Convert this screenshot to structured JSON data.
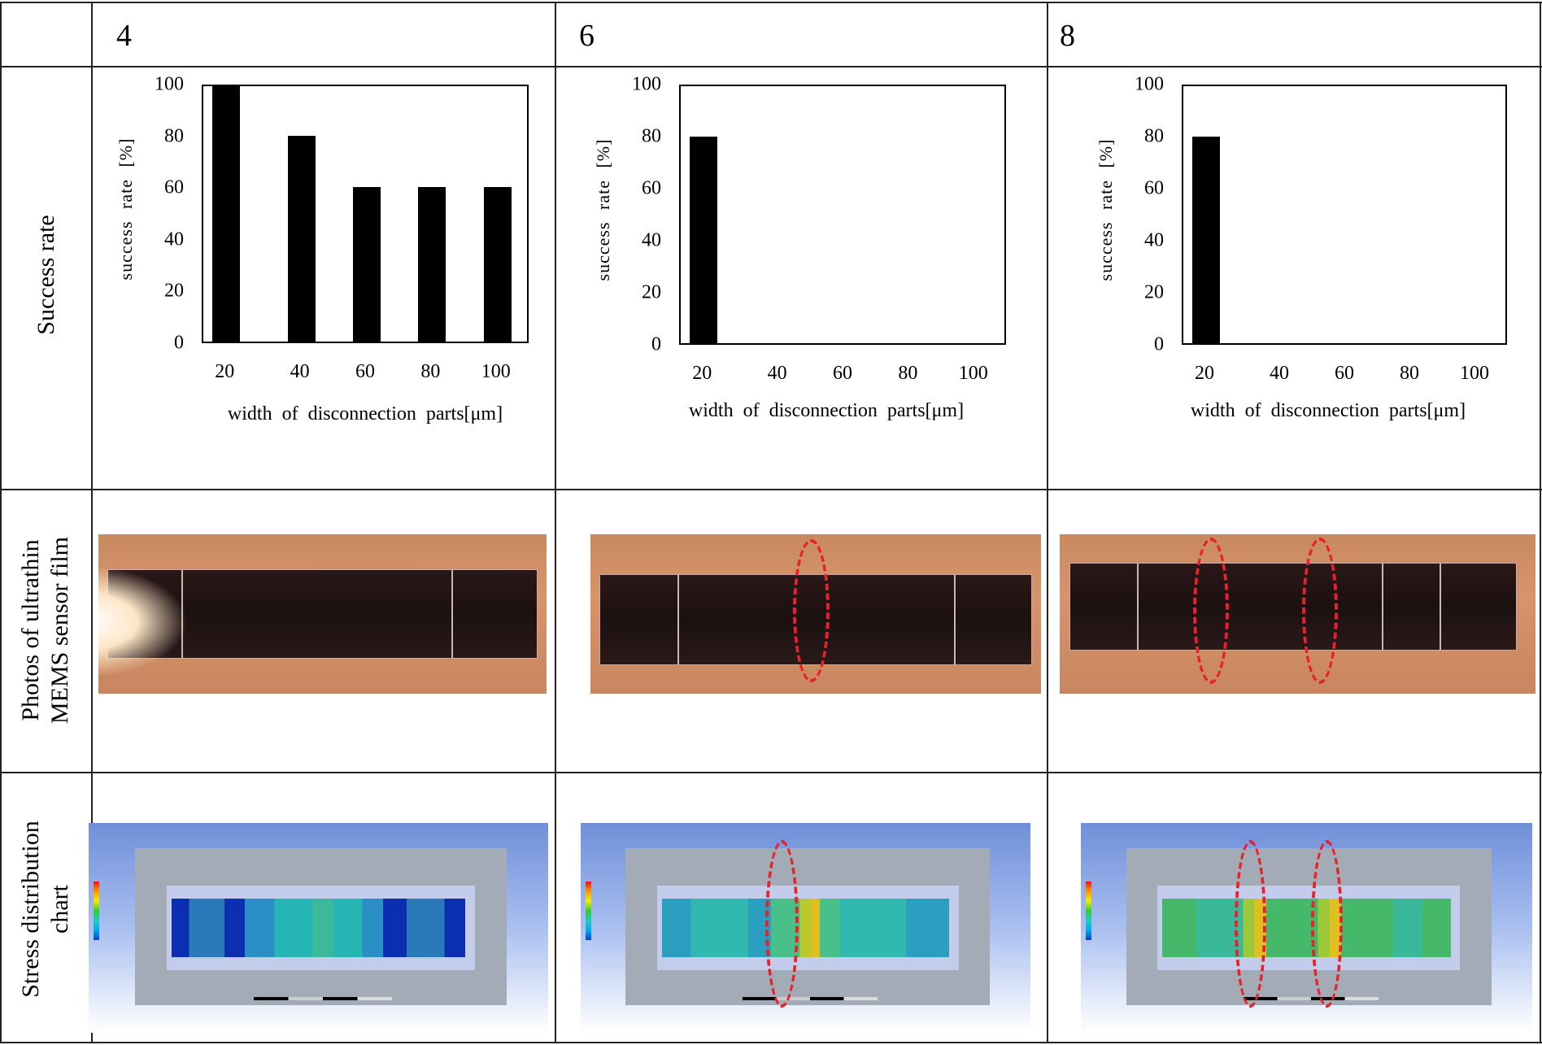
{
  "header": {
    "columns": [
      "4",
      "6",
      "8"
    ]
  },
  "rows": {
    "success_rate": "Success rate",
    "photos_line1": "Photos of ultrathin",
    "photos_line2": "MEMS sensor film",
    "stress_line1": "Stress distribution",
    "stress_line2": "chart"
  },
  "chart_data": [
    {
      "type": "bar",
      "title": "4",
      "categories": [
        "20",
        "40",
        "60",
        "80",
        "100"
      ],
      "values": [
        100,
        80,
        60,
        60,
        60
      ],
      "xlabel": "width  of  disconnection  parts[μm]",
      "ylabel": "success  rate  [%]",
      "ylim": [
        0,
        100
      ],
      "yticks": [
        "0",
        "20",
        "40",
        "60",
        "80",
        "100"
      ]
    },
    {
      "type": "bar",
      "title": "6",
      "categories": [
        "20",
        "40",
        "60",
        "80",
        "100"
      ],
      "values": [
        80,
        0,
        0,
        0,
        0
      ],
      "xlabel": "width  of  disconnection  parts[μm]",
      "ylabel": "success  rate  [%]",
      "ylim": [
        0,
        100
      ],
      "yticks": [
        "0",
        "20",
        "40",
        "60",
        "80",
        "100"
      ]
    },
    {
      "type": "bar",
      "title": "8",
      "categories": [
        "20",
        "40",
        "60",
        "80",
        "100"
      ],
      "values": [
        80,
        0,
        0,
        0,
        0
      ],
      "xlabel": "width  of  disconnection  parts[μm]",
      "ylabel": "success  rate  [%]",
      "ylim": [
        0,
        100
      ],
      "yticks": [
        "0",
        "20",
        "40",
        "60",
        "80",
        "100"
      ]
    }
  ],
  "colors": {
    "highlight": "#e8222a",
    "bar": "#000000"
  }
}
